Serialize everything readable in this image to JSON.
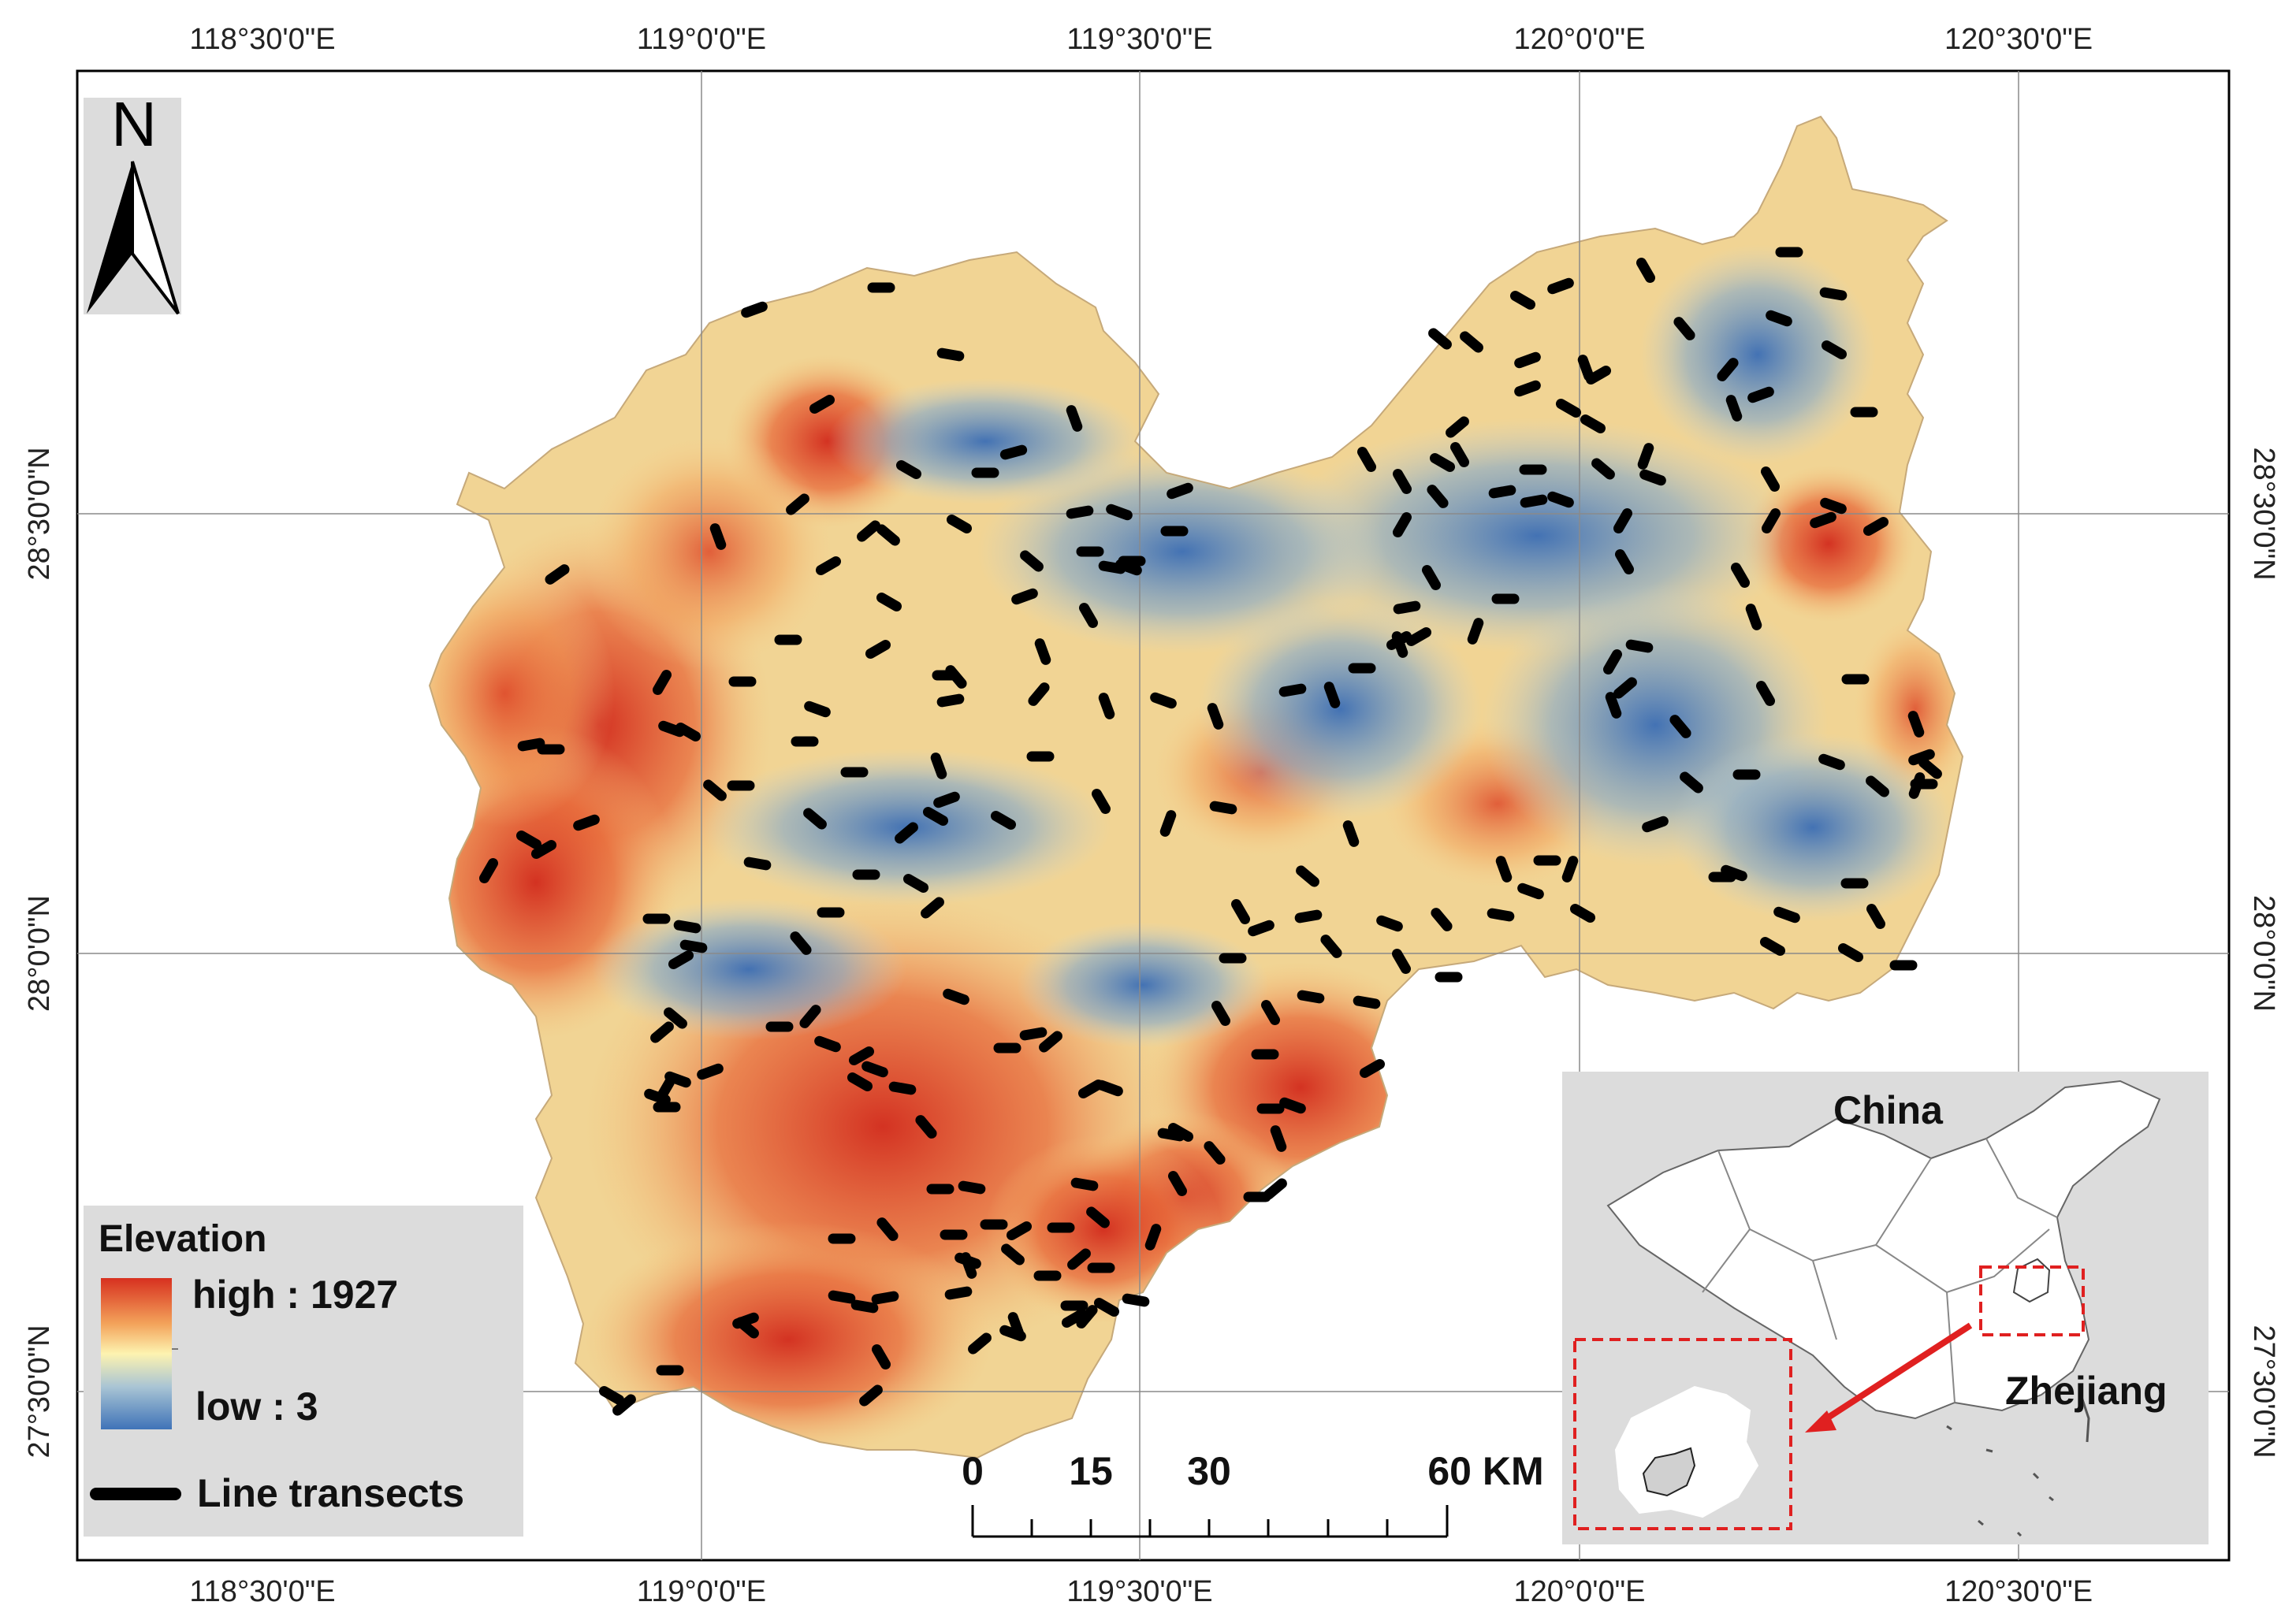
{
  "map": {
    "grid_labels": {
      "lon": [
        "118°30'0\"E",
        "119°0'0\"E",
        "119°30'0\"E",
        "120°0'0\"E",
        "120°30'0\"E"
      ],
      "lat": [
        "28°30'0\"N",
        "28°0'0\"N",
        "27°30'0\"N"
      ]
    },
    "north_arrow": {
      "letter": "N"
    },
    "legend": {
      "title": "Elevation",
      "high_label": "high : 1927",
      "low_label": "low : 3",
      "transect_label": "Line transects",
      "colors": [
        "#d7301f",
        "#f3a25a",
        "#fdf3b0",
        "#a8c4d4",
        "#3f73b8"
      ]
    },
    "scale_bar": {
      "labels": [
        "0",
        "15",
        "30",
        "60 KM"
      ]
    },
    "inset": {
      "country_label": "China",
      "province_label": "Zhejiang",
      "highlight_color": "#e02020"
    }
  }
}
